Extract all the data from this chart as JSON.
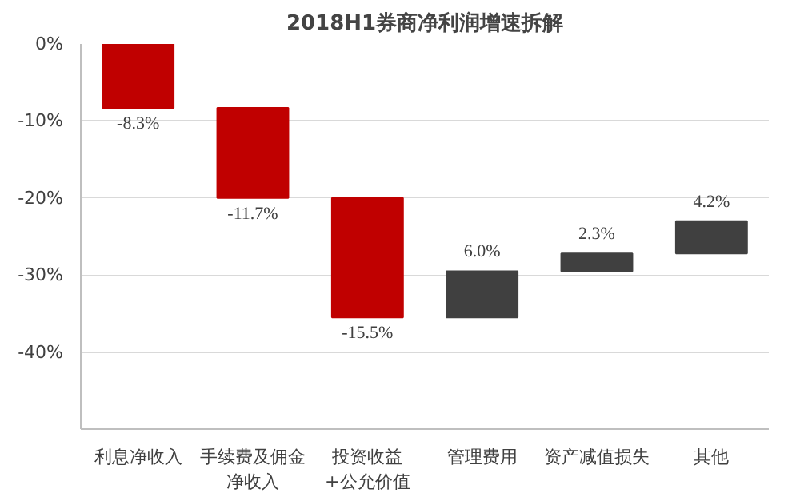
{
  "chart_data": {
    "type": "bar",
    "title": "2018H1券商净利润增速拆解",
    "categories": [
      "利息净收入",
      "手续费及佣金净收入",
      "投资收益+公允价值",
      "管理费用",
      "资产减值损失",
      "其他"
    ],
    "values": [
      -8.3,
      -11.7,
      -15.5,
      6.0,
      2.3,
      4.2
    ],
    "base": [
      0,
      -8.3,
      -20.0,
      -35.5,
      -29.5,
      -27.2
    ],
    "colors": [
      "#c00000",
      "#c00000",
      "#c00000",
      "#404040",
      "#404040",
      "#404040"
    ],
    "value_labels": [
      "-8.3%",
      "-11.7%",
      "-15.5%",
      "6.0%",
      "2.3%",
      "4.2%"
    ],
    "ylim": [
      -50,
      0
    ],
    "yticks": [
      {
        "value": 0,
        "label": "0%"
      },
      {
        "value": -10,
        "label": "-10%"
      },
      {
        "value": -20,
        "label": "-20%"
      },
      {
        "value": -30,
        "label": "-30%"
      },
      {
        "value": -40,
        "label": "-40%"
      }
    ],
    "grid": "y"
  }
}
